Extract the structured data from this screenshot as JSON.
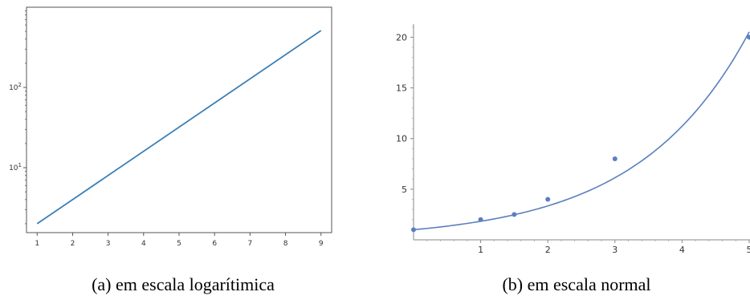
{
  "chart_data": [
    {
      "type": "line",
      "yscale": "log",
      "x": [
        1,
        9
      ],
      "y": [
        2,
        512
      ],
      "xticks": [
        "1",
        "2",
        "3",
        "4",
        "5",
        "6",
        "7",
        "8",
        "9"
      ],
      "yticks": [
        {
          "value": 10,
          "base": "10",
          "exp": "1"
        },
        {
          "value": 100,
          "base": "10",
          "exp": "2"
        }
      ],
      "xlim": [
        0.7,
        9.3
      ],
      "ylim": [
        1.55,
        1000
      ],
      "grid": false,
      "color": "#3a7fb5"
    },
    {
      "type": "scatter",
      "points": [
        {
          "x": 0,
          "y": 1
        },
        {
          "x": 1,
          "y": 2
        },
        {
          "x": 1.5,
          "y": 2.5
        },
        {
          "x": 2,
          "y": 4
        },
        {
          "x": 3,
          "y": 8
        },
        {
          "x": 5,
          "y": 20
        }
      ],
      "fit_curve": {
        "base": 1.83
      },
      "xticks": [
        "1",
        "2",
        "3",
        "4",
        "5"
      ],
      "yticks": [
        "5",
        "10",
        "15",
        "20"
      ],
      "xlim": [
        0,
        5
      ],
      "ylim": [
        0,
        21.3
      ],
      "grid": false,
      "color": "#5b7fbf"
    }
  ],
  "captions": {
    "a": "(a) em escala logarítimica",
    "b": "(b) em escala normal"
  }
}
